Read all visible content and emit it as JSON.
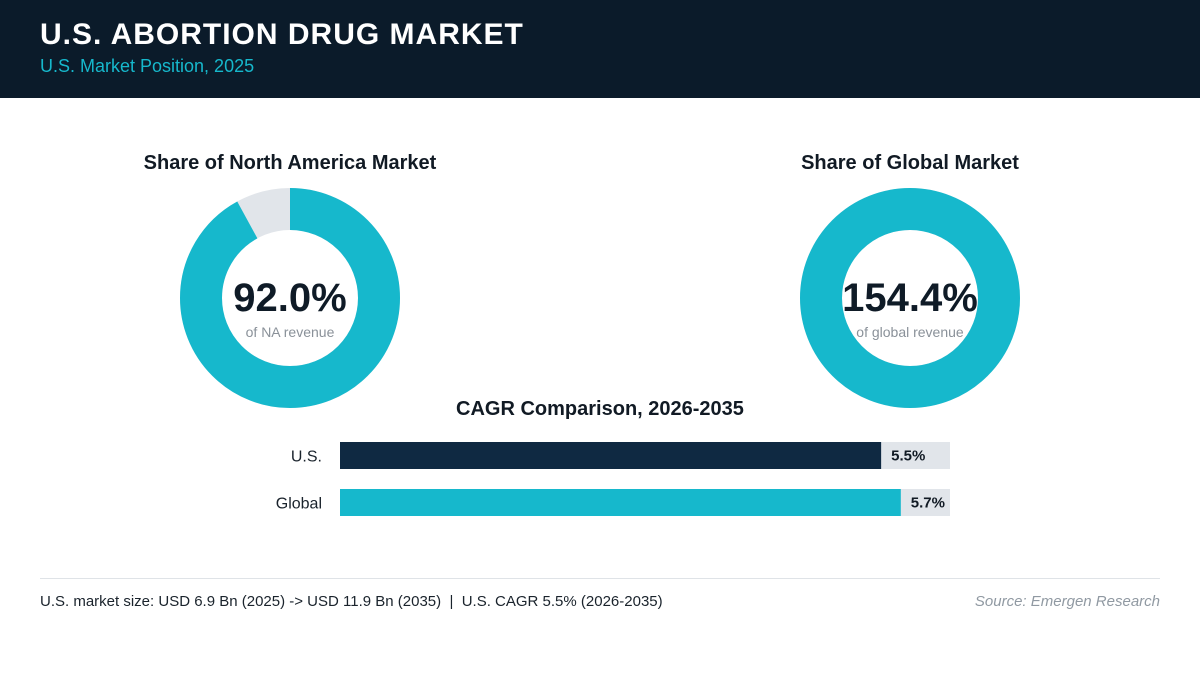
{
  "header": {
    "title": "U.S. ABORTION DRUG MARKET",
    "subtitle": "U.S. Market Position, 2025"
  },
  "colors": {
    "accent": "#16b8cc",
    "dark": "#0f2942",
    "track": "#e1e5ea",
    "header_bg": "#0b1b2a"
  },
  "chart_data": [
    {
      "type": "pie",
      "title": "Share of North America Market",
      "value_label": "92.0%",
      "caption": "of NA revenue",
      "values": [
        92.0,
        8.0
      ]
    },
    {
      "type": "pie",
      "title": "Share of Global Market",
      "value_label": "154.4%",
      "caption": "of global revenue",
      "values": [
        154.4
      ]
    },
    {
      "type": "bar",
      "title": "CAGR Comparison, 2026-2035",
      "categories": [
        "U.S.",
        "Global"
      ],
      "values": [
        5.5,
        5.7
      ],
      "value_labels": [
        "5.5%",
        "5.7%"
      ],
      "xlim": [
        0,
        6.2
      ]
    }
  ],
  "footer": {
    "summary": "U.S. market size: USD 6.9 Bn (2025) -> USD 11.9 Bn (2035)  |  U.S. CAGR 5.5% (2026-2035)",
    "source": "Source: Emergen Research"
  }
}
